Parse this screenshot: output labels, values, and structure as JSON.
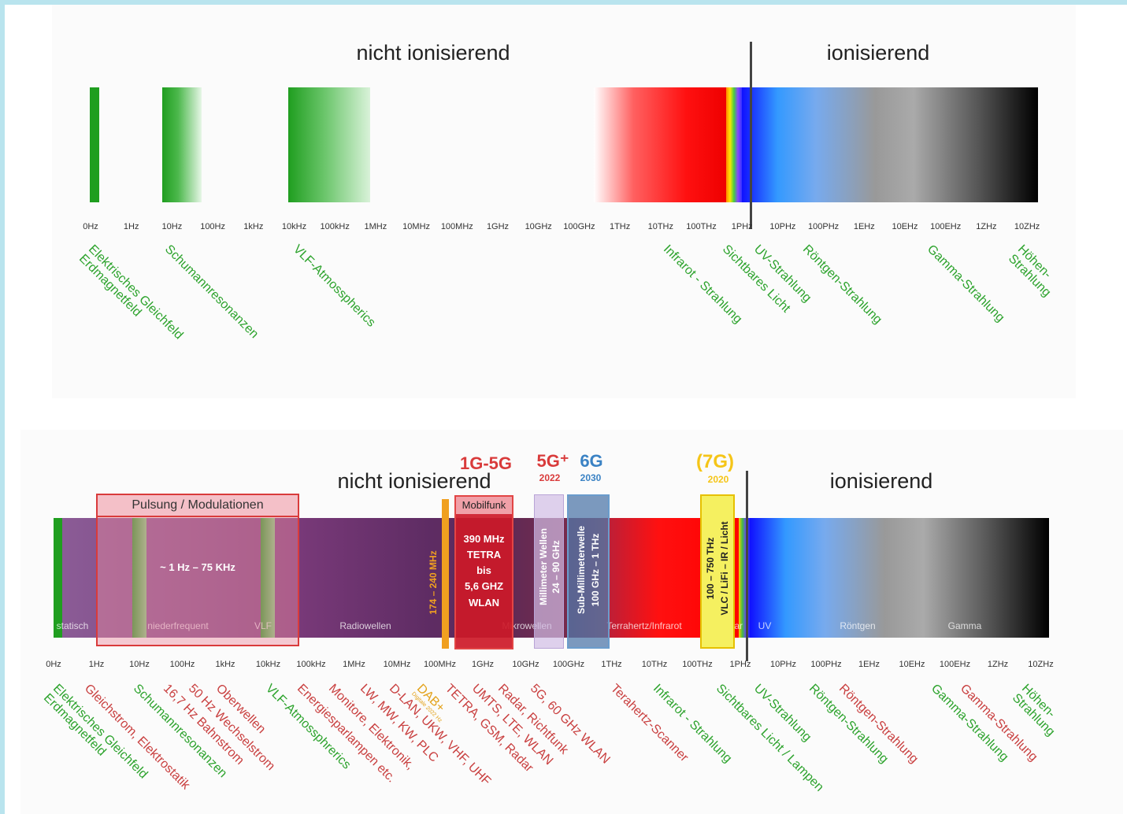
{
  "top": {
    "label_left": "nicht ionisierend",
    "label_right": "ionisierend",
    "ticks": [
      "0Hz",
      "1Hz",
      "10Hz",
      "100Hz",
      "1kHz",
      "10kHz",
      "100kHz",
      "1MHz",
      "10MHz",
      "100MHz",
      "1GHz",
      "10GHz",
      "100GHz",
      "1THz",
      "10THz",
      "100THz",
      "1PHz",
      "10PHz",
      "100PHz",
      "1EHz",
      "10EHz",
      "100EHz",
      "1ZHz",
      "10ZHz"
    ],
    "labels": [
      {
        "lines": [
          "Elektrisches Gleichfeld",
          "Erdmagnetfeld"
        ]
      },
      {
        "lines": [
          "Schumannresonanzen"
        ]
      },
      {
        "lines": [
          "VLF-Atmosspherics"
        ]
      },
      {
        "lines": [
          "Infrarot - Strahlung"
        ]
      },
      {
        "lines": [
          "Sichtbares Licht"
        ]
      },
      {
        "lines": [
          "UV-Strahlung"
        ]
      },
      {
        "lines": [
          "Röntgen-Strahlung"
        ]
      },
      {
        "lines": [
          "Gamma-Strahlung"
        ]
      },
      {
        "lines": [
          "Höhen-",
          "Strahlung"
        ]
      }
    ]
  },
  "bottom": {
    "label_left": "nicht ionisierend",
    "label_right": "ionisierend",
    "ticks": [
      "0Hz",
      "1Hz",
      "10Hz",
      "100Hz",
      "1kHz",
      "10kHz",
      "100kHz",
      "1MHz",
      "10MHz",
      "100MHz",
      "1GHz",
      "10GHz",
      "100GHz",
      "1THz",
      "10THz",
      "100THz",
      "1PHz",
      "10PHz",
      "100PHz",
      "1EHz",
      "10EHz",
      "100EHz",
      "1ZHz",
      "10ZHz"
    ],
    "pulsung": {
      "title": "Pulsung / Modulationen",
      "range": "~ 1 Hz – 75 KHz"
    },
    "dab": {
      "label": "174 – 240 MHz"
    },
    "mobil": {
      "title": "Mobilfunk",
      "lines": [
        "390 MHz",
        "TETRA",
        "bis",
        "5,6 GHZ",
        "WLAN"
      ]
    },
    "gen_1g5g": "1G-5G",
    "gen_5g": {
      "label": "5G⁺",
      "year": "2022"
    },
    "gen_6g": {
      "label": "6G",
      "year": "2030"
    },
    "gen_7g": {
      "label": "(7G)",
      "year": "2020"
    },
    "mmwave": {
      "line1": "Millimeter Wellen",
      "line2": "24 – 90 GHz"
    },
    "submm": {
      "line1": "Sub-Millimeterwelle",
      "line2": "100 GHz – 1 THz"
    },
    "vlc": {
      "line1": "100 – 750 THz",
      "line2": "VLC / LiFi – IR / Licht"
    },
    "bands": [
      "statisch",
      "niederfrequent",
      "VLF",
      "Radiowellen",
      "Mikrowellen",
      "Terrahertz/Infrarot",
      "sichtbar",
      "UV",
      "Röntgen",
      "Gamma"
    ],
    "labels": [
      {
        "lines": [
          "Elektrisches Gleichfeld",
          "Erdmagnetfeld"
        ],
        "color": "green"
      },
      {
        "lines": [
          "Gleichstrom, Elektrostatik"
        ],
        "color": "red"
      },
      {
        "lines": [
          "Schumannresonanzen"
        ],
        "color": "green"
      },
      {
        "lines": [
          "16,7 Hz Bahnstrom"
        ],
        "color": "red"
      },
      {
        "lines": [
          "50 Hz Wechselstrom"
        ],
        "color": "red"
      },
      {
        "lines": [
          "Oberwellen"
        ],
        "color": "red"
      },
      {
        "lines": [
          "VLF-Atmossphrerics"
        ],
        "color": "green"
      },
      {
        "lines": [
          "Energiesparlampen etc."
        ],
        "color": "red"
      },
      {
        "lines": [
          "Monitore, Elektronik,"
        ],
        "color": "red"
      },
      {
        "lines": [
          "LW, MW, KW, PLC"
        ],
        "color": "red"
      },
      {
        "lines": [
          "D-LAN, UKW, VHF, UHF"
        ],
        "color": "red"
      },
      {
        "lines": [
          "DAB+"
        ],
        "color": "orange",
        "sub": "Digitale 2022 Hz"
      },
      {
        "lines": [
          "TETRA, GSM, Radar"
        ],
        "color": "red"
      },
      {
        "lines": [
          "UMTS, LTE, WLAN"
        ],
        "color": "red"
      },
      {
        "lines": [
          "Radar, Richtfunk"
        ],
        "color": "red"
      },
      {
        "lines": [
          "5G, 60 GHz WLAN"
        ],
        "color": "red"
      },
      {
        "lines": [
          "Terahertz-Scanner"
        ],
        "color": "red"
      },
      {
        "lines": [
          "Infrarot - Strahlung"
        ],
        "color": "green"
      },
      {
        "lines": [
          "Sichtbares Licht / Lampen"
        ],
        "color": "green"
      },
      {
        "lines": [
          "UV-Strahlung"
        ],
        "color": "green"
      },
      {
        "lines": [
          "Röntgen-Strahlung"
        ],
        "color": "green"
      },
      {
        "lines": [
          "Röntgen-Strahlung"
        ],
        "color": "red"
      },
      {
        "lines": [
          "Gamma-Strahlung"
        ],
        "color": "green"
      },
      {
        "lines": [
          "Gamma-Strahlung"
        ],
        "color": "red"
      },
      {
        "lines": [
          "Höhen-",
          "Strahlung"
        ],
        "color": "green"
      }
    ]
  }
}
